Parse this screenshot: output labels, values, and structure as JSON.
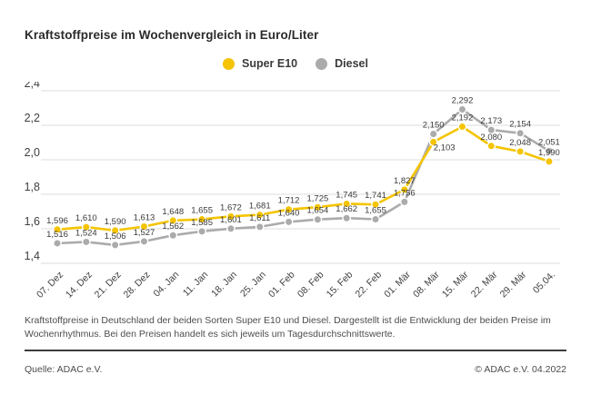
{
  "title": "Kraftstoffpreise im Wochenvergleich in Euro/Liter",
  "legend": {
    "super_e10_label": "Super E10",
    "diesel_label": "Diesel"
  },
  "colors": {
    "super_e10": "#F5C400",
    "diesel": "#ABABAB",
    "grid": "#DCDCDC",
    "tick_text": "#3f3f3f",
    "value_label_text": "#3a3a3a"
  },
  "chart_data": {
    "type": "line",
    "x": [
      "07. Dez",
      "14. Dez",
      "21. Dez",
      "28. Dez",
      "04. Jan",
      "11. Jan",
      "18. Jan",
      "25. Jan",
      "01. Feb",
      "08. Feb",
      "15. Feb",
      "22. Feb",
      "01. Mär",
      "08. Mär",
      "15. Mär",
      "22. Mär",
      "29. Mär",
      "05.04."
    ],
    "series": [
      {
        "name": "Super E10",
        "color": "#F5C400",
        "values": [
          1.596,
          1.61,
          1.59,
          1.613,
          1.648,
          1.655,
          1.672,
          1.681,
          1.712,
          1.725,
          1.745,
          1.741,
          1.827,
          2.103,
          2.192,
          2.08,
          2.048,
          1.99
        ]
      },
      {
        "name": "Diesel",
        "color": "#ABABAB",
        "values": [
          1.516,
          1.524,
          1.506,
          1.527,
          1.562,
          1.585,
          1.601,
          1.611,
          1.64,
          1.654,
          1.662,
          1.655,
          1.756,
          2.15,
          2.292,
          2.173,
          2.154,
          2.051
        ]
      }
    ],
    "ylim": [
      1.4,
      2.4
    ],
    "yticks": [
      2.4,
      2.2,
      2.0,
      1.8,
      1.6,
      1.4
    ],
    "grid": true,
    "legend_position": "top-center",
    "value_labels": true,
    "decimal_separator": ",",
    "label_position_overrides": {
      "Super E10": {
        "13": [
          12,
          9
        ]
      }
    }
  },
  "description": "Kraftstoffpreise in Deutschland der beiden Sorten Super E10 und Diesel. Dargestellt ist die Entwicklung der beiden Preise im Wochenrhythmus. Bei den Preisen handelt es sich jeweils um Tagesdurchschnittswerte.",
  "footer": {
    "source": "Quelle: ADAC e.V.",
    "copyright": "© ADAC e.V. 04.2022"
  }
}
